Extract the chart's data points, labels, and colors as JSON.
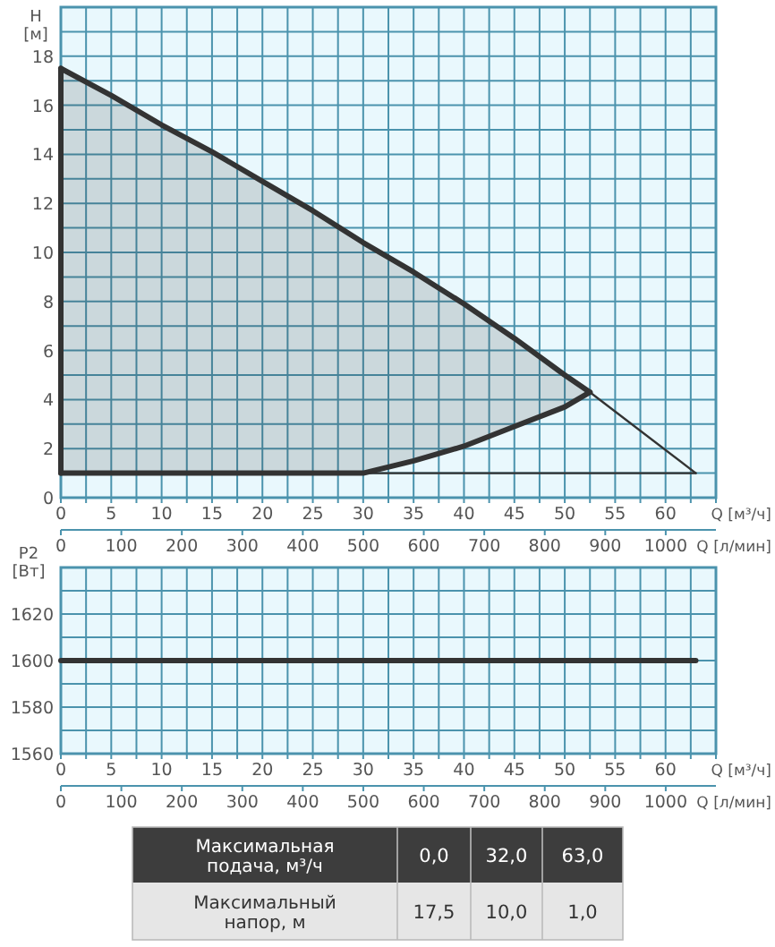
{
  "chart_data": [
    {
      "type": "line",
      "ylabel": "H [м]",
      "xlabel": "Q [м³/ч]",
      "x2label": "Q [л/мин]",
      "grid": true,
      "xlim": [
        0,
        65
      ],
      "xticks": [
        0,
        {
          "value": 2.5,
          "label": null
        },
        5,
        {
          "value": 7.5,
          "label": null
        },
        10,
        {
          "value": 12.5,
          "label": null
        },
        15,
        {
          "value": 17.5,
          "label": null
        },
        20,
        {
          "value": 22.5,
          "label": null
        },
        25,
        {
          "value": 27.5,
          "label": null
        },
        30,
        {
          "value": 32.5,
          "label": null
        },
        35,
        {
          "value": 37.5,
          "label": null
        },
        40,
        {
          "value": 42.5,
          "label": null
        },
        45,
        {
          "value": 47.5,
          "label": null
        },
        50,
        {
          "value": 52.5,
          "label": null
        },
        55,
        {
          "value": 57.5,
          "label": null
        },
        60,
        {
          "value": 62.5,
          "label": null
        },
        {
          "value": 65,
          "label": null
        }
      ],
      "x2lim": [
        0,
        1083
      ],
      "x2ticks": [
        0,
        100,
        200,
        300,
        400,
        500,
        600,
        700,
        800,
        900,
        1000
      ],
      "ylim": [
        0,
        20
      ],
      "yticks": [
        0,
        {
          "value": 1,
          "label": null
        },
        2,
        {
          "value": 3,
          "label": null
        },
        4,
        {
          "value": 5,
          "label": null
        },
        6,
        {
          "value": 7,
          "label": null
        },
        8,
        {
          "value": 9,
          "label": null
        },
        10,
        {
          "value": 11,
          "label": null
        },
        12,
        {
          "value": 13,
          "label": null
        },
        14,
        {
          "value": 15,
          "label": null
        },
        16,
        {
          "value": 17,
          "label": null
        },
        18,
        {
          "value": 19,
          "label": null
        },
        {
          "value": 20,
          "label": null
        }
      ],
      "series": [
        {
          "type": "line",
          "color": "#333333",
          "x": [
            0,
            5,
            10,
            15,
            20,
            25,
            30,
            35,
            40,
            45,
            50,
            52.5
          ],
          "values": [
            17.5,
            16.4,
            15.2,
            14.1,
            12.9,
            11.7,
            10.4,
            9.2,
            7.9,
            6.5,
            5.0,
            4.3
          ],
          "upper": [
            17.5,
            16.4,
            15.2,
            14.1,
            12.9,
            11.7,
            10.4,
            9.2,
            7.9,
            6.5,
            5.0,
            4.3
          ],
          "lower": [
            1,
            1,
            1,
            1,
            1,
            1,
            1,
            1.5,
            2.1,
            2.9,
            3.7,
            4.3
          ]
        },
        {
          "type": "line",
          "color": "#333333",
          "x": [
            0,
            5,
            10,
            15,
            20,
            25,
            30,
            35,
            40,
            45,
            50,
            52.5
          ],
          "values": [
            1,
            1,
            1,
            1,
            1,
            1,
            1,
            1.5,
            2.1,
            2.9,
            3.7,
            4.3
          ]
        },
        {
          "type": "line",
          "color": "#333333",
          "x": [
            0,
            0
          ],
          "values": [
            1,
            17.5
          ]
        },
        {
          "type": "line",
          "color": "#333333",
          "x": [
            52.5,
            63
          ],
          "values": [
            4.3,
            1
          ]
        },
        {
          "type": "line",
          "color": "#333333",
          "x": [
            30,
            63
          ],
          "values": [
            1,
            1
          ]
        }
      ]
    },
    {
      "type": "line",
      "ylabel": "P2 [Вт]",
      "xlabel": "Q [м³/ч]",
      "x2label": "Q [л/мин]",
      "grid": true,
      "xlim": [
        0,
        65
      ],
      "xticks": [
        0,
        {
          "value": 2.5,
          "label": null
        },
        5,
        {
          "value": 7.5,
          "label": null
        },
        10,
        {
          "value": 12.5,
          "label": null
        },
        15,
        {
          "value": 17.5,
          "label": null
        },
        20,
        {
          "value": 22.5,
          "label": null
        },
        25,
        {
          "value": 27.5,
          "label": null
        },
        30,
        {
          "value": 32.5,
          "label": null
        },
        35,
        {
          "value": 37.5,
          "label": null
        },
        40,
        {
          "value": 42.5,
          "label": null
        },
        45,
        {
          "value": 47.5,
          "label": null
        },
        50,
        {
          "value": 52.5,
          "label": null
        },
        55,
        {
          "value": 57.5,
          "label": null
        },
        60,
        {
          "value": 62.5,
          "label": null
        },
        {
          "value": 65,
          "label": null
        }
      ],
      "x2lim": [
        0,
        1083
      ],
      "x2ticks": [
        0,
        100,
        200,
        300,
        400,
        500,
        600,
        700,
        800,
        900,
        1000
      ],
      "ylim": [
        1560,
        1640
      ],
      "yticks": [
        1560,
        {
          "value": 1570,
          "label": null
        },
        1580,
        {
          "value": 1590,
          "label": null
        },
        1600,
        {
          "value": 1610,
          "label": null
        },
        1620,
        {
          "value": 1630,
          "label": null
        },
        {
          "value": 1640,
          "label": null
        }
      ],
      "series": [
        {
          "type": "line",
          "color": "#333333",
          "x": [
            0,
            63
          ],
          "values": [
            1600,
            1600
          ]
        }
      ]
    },
    {
      "type": "other",
      "annotations": [
        "Максимальная подача, м³/ч",
        "0,0",
        "32,0",
        "63,0",
        "Максимальный напор, м",
        "17,5",
        "10,0",
        "1,0"
      ]
    }
  ]
}
